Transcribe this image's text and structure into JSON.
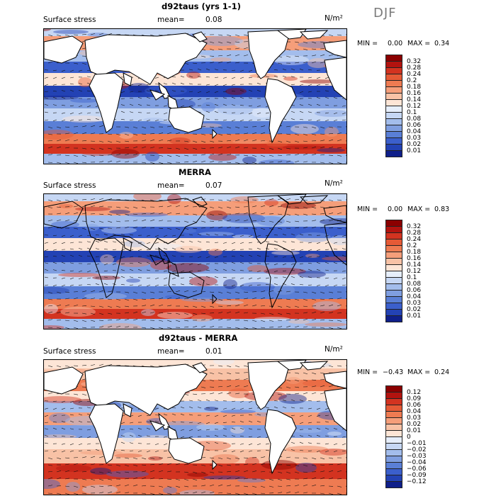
{
  "season": "DJF",
  "units": "N/m²",
  "panels": [
    {
      "title": "d92taus (yrs 1-1)",
      "subtitle": "Surface stress",
      "mean_label": "mean=",
      "mean_value": "0.08",
      "min_label": "MIN =",
      "min_value": "0.00",
      "max_label": "MAX =",
      "max_value": "0.34",
      "colorbar_labels": [
        "0.32",
        "0.28",
        "0.24",
        "0.2",
        "0.18",
        "0.16",
        "0.14",
        "0.12",
        "0.1",
        "0.08",
        "0.06",
        "0.04",
        "0.03",
        "0.02",
        "0.01"
      ],
      "colorbar_colors": [
        "#8b0000",
        "#b2130f",
        "#d33320",
        "#e55a36",
        "#ee7b52",
        "#f59e7a",
        "#f8c2a6",
        "#fde5d6",
        "#e6eefb",
        "#c6d7f4",
        "#a3bdec",
        "#7f9ee0",
        "#5a7fd6",
        "#3b5fcc",
        "#2342b4",
        "#0f1f8a"
      ]
    },
    {
      "title": "MERRA",
      "subtitle": "Surface stress",
      "mean_label": "mean=",
      "mean_value": "0.07",
      "min_label": "MIN =",
      "min_value": "0.00",
      "max_label": "MAX =",
      "max_value": "0.83",
      "colorbar_labels": [
        "0.32",
        "0.28",
        "0.24",
        "0.2",
        "0.18",
        "0.16",
        "0.14",
        "0.12",
        "0.1",
        "0.08",
        "0.06",
        "0.04",
        "0.03",
        "0.02",
        "0.01"
      ],
      "colorbar_colors": [
        "#8b0000",
        "#b2130f",
        "#d33320",
        "#e55a36",
        "#ee7b52",
        "#f59e7a",
        "#f8c2a6",
        "#fde5d6",
        "#e6eefb",
        "#c6d7f4",
        "#a3bdec",
        "#7f9ee0",
        "#5a7fd6",
        "#3b5fcc",
        "#2342b4",
        "#0f1f8a"
      ]
    },
    {
      "title": "d92taus - MERRA",
      "subtitle": "Surface stress",
      "mean_label": "mean=",
      "mean_value": "0.01",
      "min_label": "MIN =",
      "min_value": "−0.43",
      "max_label": "MAX =",
      "max_value": "0.24",
      "colorbar_labels": [
        "0.12",
        "0.09",
        "0.06",
        "0.04",
        "0.03",
        "0.02",
        "0.01",
        "0",
        "−0.01",
        "−0.02",
        "−0.03",
        "−0.04",
        "−0.06",
        "−0.09",
        "−0.12"
      ],
      "colorbar_colors": [
        "#8b0000",
        "#b2130f",
        "#d33320",
        "#e55a36",
        "#ee7b52",
        "#f59e7a",
        "#f8c2a6",
        "#fde5d6",
        "#e6eefb",
        "#c6d7f4",
        "#a3bdec",
        "#7f9ee0",
        "#5a7fd6",
        "#3b5fcc",
        "#2342b4",
        "#0f1f8a"
      ]
    }
  ]
}
